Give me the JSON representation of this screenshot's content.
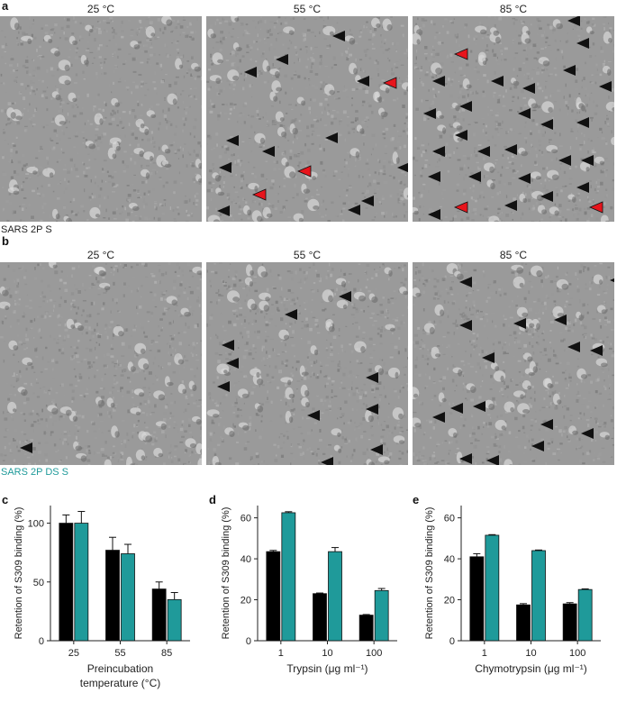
{
  "figure": {
    "panel_a_label": "a",
    "panel_b_label": "b",
    "panel_c_label": "c",
    "panel_d_label": "d",
    "panel_e_label": "e",
    "temperatures": [
      "25 °C",
      "55 °C",
      "85 °C"
    ],
    "sample_a": "SARS 2P S",
    "sample_b": "SARS 2P DS S",
    "sample_b_color": "#1f9a9a",
    "micrograph_bg": "#9a9a9a",
    "arrow_black": "#111111",
    "arrow_red": "#e8141c"
  },
  "chart_data": [
    {
      "type": "bar",
      "categories": [
        "25",
        "55",
        "85"
      ],
      "series": [
        {
          "values": [
            100,
            77,
            44
          ],
          "errors": [
            7,
            11,
            6
          ],
          "color": "#000000"
        },
        {
          "values": [
            100,
            74,
            35
          ],
          "errors": [
            10,
            8,
            6
          ],
          "color": "#1f9a9a"
        }
      ],
      "xlabel": "Preincubation",
      "xlabel2": "temperature (°C)",
      "ylabel": "Retention of S309 binding (%)",
      "ylim": [
        0,
        115
      ],
      "yticks": [
        0,
        50,
        100
      ]
    },
    {
      "type": "bar",
      "categories": [
        "1",
        "10",
        "100"
      ],
      "series": [
        {
          "values": [
            43.5,
            23,
            12.5
          ],
          "errors": [
            0.6,
            0.3,
            0.3
          ],
          "color": "#000000"
        },
        {
          "values": [
            62.5,
            43.5,
            24.5
          ],
          "errors": [
            0.5,
            2,
            1
          ],
          "color": "#1f9a9a"
        }
      ],
      "xlabel": "Trypsin (μg ml⁻¹)",
      "ylabel": "Retention of S309 binding (%)",
      "ylim": [
        0,
        66
      ],
      "yticks": [
        0,
        20,
        40,
        60
      ]
    },
    {
      "type": "bar",
      "categories": [
        "1",
        "10",
        "100"
      ],
      "series": [
        {
          "values": [
            41,
            17.5,
            18
          ],
          "errors": [
            1.5,
            0.6,
            0.6
          ],
          "color": "#000000"
        },
        {
          "values": [
            51.5,
            44,
            25
          ],
          "errors": [
            0.3,
            0.3,
            0.3
          ],
          "color": "#1f9a9a"
        }
      ],
      "xlabel": "Chymotrypsin (μg ml⁻¹)",
      "ylabel": "Retention of S309 binding (%)",
      "ylim": [
        0,
        66
      ],
      "yticks": [
        0,
        20,
        40,
        60
      ]
    }
  ]
}
